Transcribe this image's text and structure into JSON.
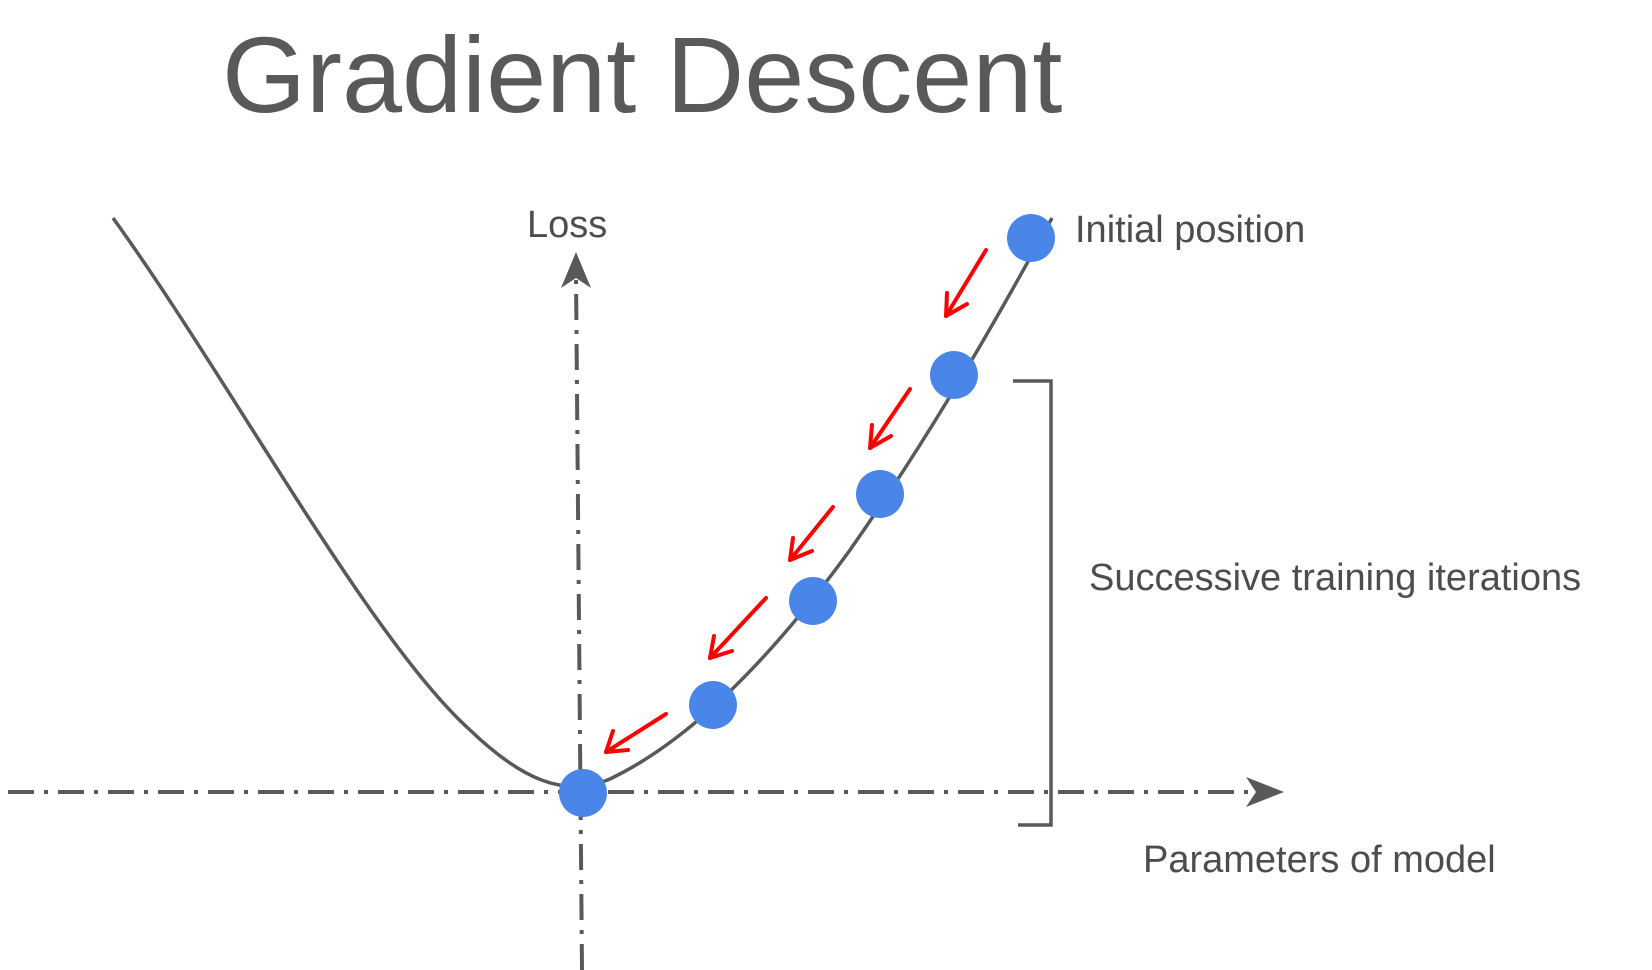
{
  "title": "Gradient Descent",
  "axes": {
    "y_label": "Loss",
    "x_label": "Parameters of model"
  },
  "annotations": {
    "initial_position": "Initial position",
    "iterations": "Successive training iterations"
  },
  "steps": {
    "dot_count": 6,
    "arrow_count": 5
  },
  "colors": {
    "dot": "#4a86e8",
    "arrow": "#ff0000",
    "line": "#595959",
    "text": "#4d4d4d"
  }
}
